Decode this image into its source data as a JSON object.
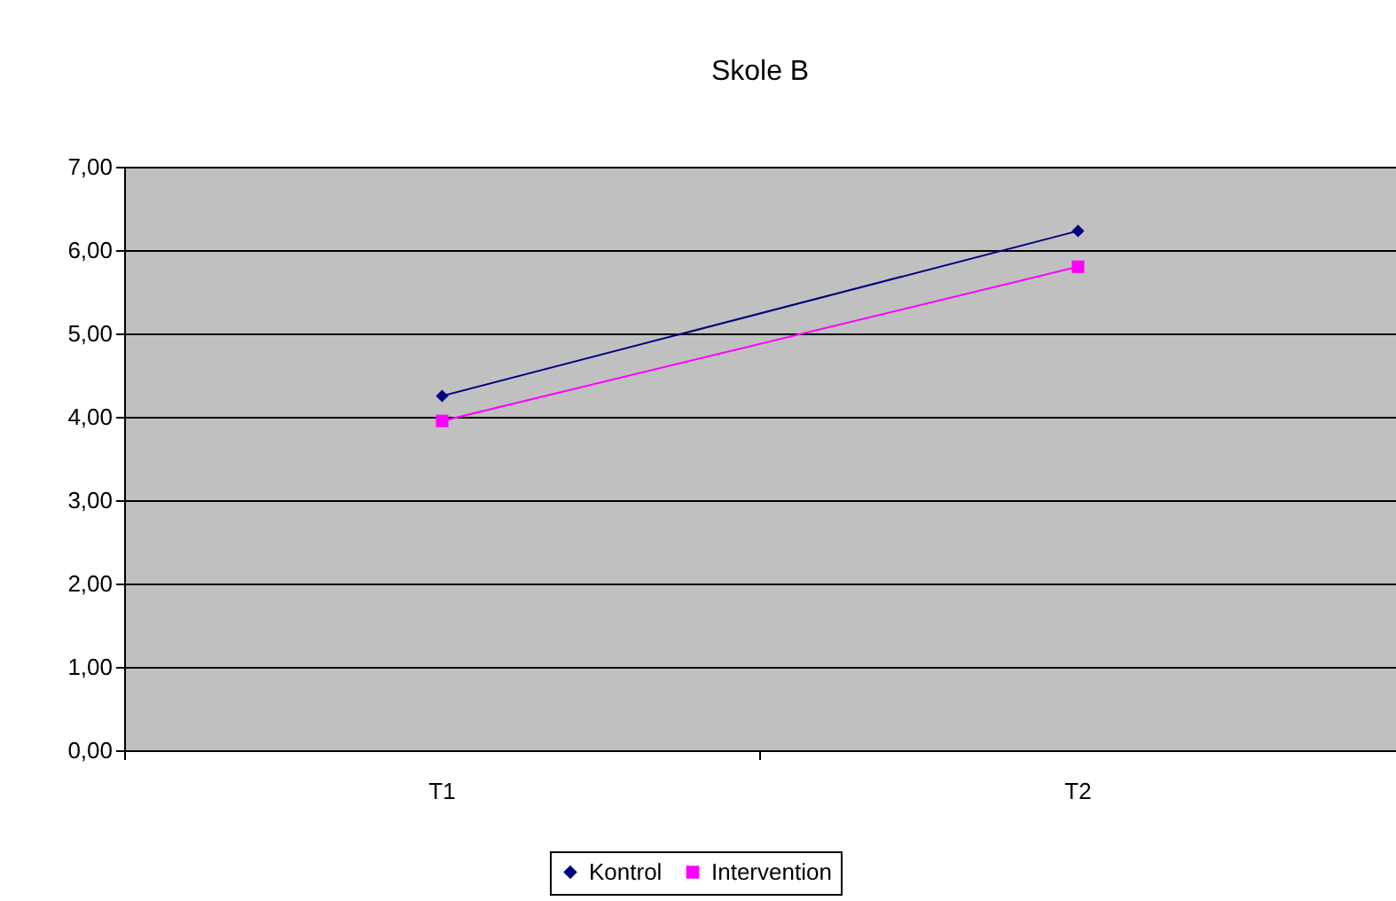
{
  "chart_data": {
    "type": "line",
    "title": "Skole B",
    "categories": [
      "T1",
      "T2"
    ],
    "series": [
      {
        "name": "Kontrol",
        "color": "#000080",
        "marker": "diamond",
        "values": [
          4.25,
          6.23
        ]
      },
      {
        "name": "Intervention",
        "color": "#ff00ff",
        "marker": "square",
        "values": [
          3.95,
          5.8
        ]
      }
    ],
    "ylim": [
      0,
      7
    ],
    "yticks": [
      {
        "value": 0,
        "label": "0,00"
      },
      {
        "value": 1,
        "label": "1,00"
      },
      {
        "value": 2,
        "label": "2,00"
      },
      {
        "value": 3,
        "label": "3,00"
      },
      {
        "value": 4,
        "label": "4,00"
      },
      {
        "value": 5,
        "label": "5,00"
      },
      {
        "value": 6,
        "label": "6,00"
      },
      {
        "value": 7,
        "label": "7,00"
      }
    ],
    "grid": "y",
    "legend": "bottom",
    "line_style": "solid"
  }
}
